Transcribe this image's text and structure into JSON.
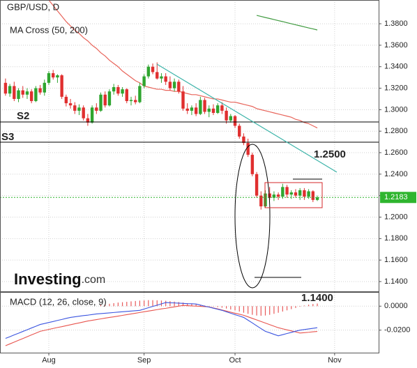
{
  "chart_data": {
    "type": "candlestick",
    "title": "GBP/USD, D",
    "indicator": "MA Cross (50, 200)",
    "categories": [
      null,
      null,
      null,
      null,
      null,
      null,
      null,
      null,
      null,
      null,
      "Aug",
      null,
      null,
      null,
      null,
      null,
      null,
      null,
      null,
      null,
      null,
      null,
      null,
      null,
      null,
      null,
      null,
      null,
      null,
      null,
      null,
      null,
      "Sep",
      null,
      null,
      null,
      null,
      null,
      null,
      null,
      null,
      null,
      null,
      null,
      null,
      null,
      null,
      null,
      null,
      null,
      null,
      null,
      null,
      "Oct",
      null,
      null,
      null,
      null,
      null,
      null,
      null,
      null,
      null,
      null,
      null,
      null,
      null,
      null,
      null,
      null,
      null,
      null,
      null,
      null,
      null,
      null,
      "Nov"
    ],
    "open": [
      1.325,
      1.315,
      1.322,
      1.31,
      1.318,
      1.314,
      1.317,
      1.308,
      1.32,
      1.316,
      1.325,
      1.334,
      1.33,
      1.332,
      1.312,
      1.306,
      1.304,
      1.299,
      1.302,
      1.292,
      1.288,
      1.302,
      1.299,
      1.314,
      1.304,
      1.317,
      1.321,
      1.315,
      1.319,
      1.308,
      1.309,
      1.307,
      1.322,
      1.331,
      1.34,
      1.335,
      1.329,
      1.331,
      1.326,
      1.32,
      1.326,
      1.317,
      1.301,
      1.299,
      1.302,
      1.296,
      1.309,
      1.298,
      1.301,
      1.297,
      1.304,
      1.299,
      1.29,
      1.294,
      1.285,
      1.275,
      1.269,
      1.258,
      1.24,
      1.22,
      1.21,
      1.222,
      1.218,
      1.221,
      1.219,
      1.228,
      1.221,
      1.223,
      1.22,
      1.225,
      1.219,
      1.224,
      1.216,
      null,
      null,
      null,
      null
    ],
    "high": [
      1.329,
      1.324,
      1.326,
      1.32,
      1.322,
      1.32,
      1.319,
      1.322,
      1.323,
      1.328,
      1.336,
      1.337,
      1.333,
      1.333,
      1.314,
      1.31,
      1.307,
      1.305,
      1.304,
      1.296,
      1.304,
      1.306,
      1.316,
      1.317,
      1.319,
      1.324,
      1.323,
      1.321,
      1.32,
      1.312,
      1.313,
      1.325,
      1.333,
      1.342,
      1.343,
      1.344,
      1.334,
      1.334,
      1.331,
      1.329,
      1.328,
      1.322,
      1.306,
      1.304,
      1.306,
      1.312,
      1.311,
      1.304,
      1.305,
      1.306,
      1.307,
      1.302,
      1.296,
      1.295,
      1.287,
      1.278,
      1.273,
      1.26,
      1.242,
      1.224,
      1.225,
      1.228,
      1.224,
      1.223,
      1.231,
      1.23,
      1.225,
      1.226,
      1.227,
      1.227,
      1.226,
      1.225,
      1.22,
      null,
      null,
      null,
      null
    ],
    "low": [
      1.313,
      1.312,
      1.308,
      1.307,
      1.311,
      1.31,
      1.306,
      1.307,
      1.314,
      1.313,
      1.323,
      1.328,
      1.325,
      1.31,
      1.303,
      1.301,
      1.296,
      1.295,
      1.29,
      1.285,
      1.287,
      1.296,
      1.298,
      1.302,
      1.303,
      1.314,
      1.313,
      1.312,
      1.306,
      1.304,
      1.305,
      1.306,
      1.32,
      1.329,
      1.333,
      1.328,
      1.325,
      1.323,
      1.318,
      1.317,
      1.315,
      1.299,
      1.296,
      1.295,
      1.294,
      1.295,
      1.296,
      1.293,
      1.295,
      1.296,
      1.296,
      1.287,
      1.288,
      1.283,
      1.273,
      1.267,
      1.256,
      1.238,
      1.218,
      1.207,
      1.209,
      1.216,
      1.215,
      1.216,
      1.217,
      1.218,
      1.217,
      1.218,
      1.216,
      1.216,
      1.217,
      1.214,
      1.215,
      null,
      null,
      null,
      null
    ],
    "close": [
      1.315,
      1.322,
      1.31,
      1.318,
      1.314,
      1.317,
      1.308,
      1.32,
      1.316,
      1.325,
      1.334,
      1.33,
      1.332,
      1.312,
      1.306,
      1.304,
      1.299,
      1.302,
      1.292,
      1.288,
      1.302,
      1.299,
      1.314,
      1.304,
      1.317,
      1.321,
      1.315,
      1.319,
      1.308,
      1.309,
      1.307,
      1.322,
      1.331,
      1.34,
      1.335,
      1.329,
      1.331,
      1.326,
      1.32,
      1.326,
      1.317,
      1.301,
      1.299,
      1.302,
      1.296,
      1.309,
      1.298,
      1.301,
      1.297,
      1.304,
      1.299,
      1.29,
      1.294,
      1.285,
      1.275,
      1.269,
      1.258,
      1.24,
      1.22,
      1.21,
      1.222,
      1.218,
      1.221,
      1.219,
      1.228,
      1.221,
      1.223,
      1.22,
      1.225,
      1.219,
      1.224,
      1.216,
      1.2183,
      null,
      null,
      null,
      null
    ],
    "up_color": "#2fa52f",
    "down_color": "#e02f2f",
    "ma_lines": [
      {
        "color": "#e8645a",
        "values": [
          null,
          null,
          null,
          null,
          null,
          null,
          null,
          null,
          null,
          null,
          1.402,
          1.397,
          1.392,
          1.387,
          1.382,
          1.378,
          1.374,
          1.371,
          1.367,
          1.364,
          1.36,
          1.357,
          1.353,
          1.35,
          1.346,
          1.343,
          1.34,
          1.336,
          1.333,
          1.33,
          1.327,
          1.325,
          1.322,
          1.321,
          1.32,
          1.319,
          1.319,
          1.318,
          1.318,
          1.317,
          1.317,
          1.316,
          1.315,
          1.314,
          1.314,
          1.313,
          1.312,
          1.311,
          1.31,
          1.31,
          1.309,
          1.308,
          1.307,
          1.307,
          1.306,
          1.305,
          1.304,
          1.303,
          1.301,
          1.3,
          1.299,
          1.298,
          1.297,
          1.296,
          1.295,
          1.294,
          1.293,
          1.291,
          1.29,
          1.288,
          1.287,
          1.285,
          1.283,
          null,
          null,
          null,
          null
        ]
      },
      {
        "color": "#3f9a3f",
        "values": [
          null,
          null,
          null,
          null,
          null,
          null,
          null,
          null,
          null,
          null,
          null,
          null,
          null,
          null,
          null,
          null,
          null,
          null,
          null,
          null,
          null,
          null,
          null,
          null,
          null,
          null,
          null,
          null,
          null,
          null,
          null,
          null,
          null,
          null,
          null,
          null,
          null,
          null,
          null,
          null,
          null,
          null,
          null,
          null,
          null,
          null,
          null,
          null,
          null,
          null,
          null,
          null,
          null,
          null,
          null,
          null,
          null,
          null,
          1.3878,
          1.3868,
          1.3858,
          1.3849,
          1.3839,
          1.3829,
          1.382,
          1.381,
          1.38,
          1.379,
          1.3781,
          1.3771,
          1.3761,
          1.3752,
          1.3742,
          null,
          null,
          null,
          null
        ]
      }
    ],
    "ylim": [
      1.1309,
      1.4021
    ],
    "yticks": [
      {
        "value": 1.38,
        "label": "1.3800"
      },
      {
        "value": 1.36,
        "label": "1.3600"
      },
      {
        "value": 1.34,
        "label": "1.3400"
      },
      {
        "value": 1.32,
        "label": "1.3200"
      },
      {
        "value": 1.3,
        "label": "1.3000"
      },
      {
        "value": 1.28,
        "label": "1.2800"
      },
      {
        "value": 1.26,
        "label": "1.2600"
      },
      {
        "value": 1.24,
        "label": "1.2400"
      },
      {
        "value": 1.22,
        "label": "1.2200"
      },
      {
        "value": 1.2,
        "label": "1.2000"
      },
      {
        "value": 1.18,
        "label": "1.1800"
      },
      {
        "value": 1.16,
        "label": "1.1600"
      },
      {
        "value": 1.14,
        "label": "1.1400"
      }
    ],
    "grid": true,
    "last_price": {
      "value": 1.2183,
      "label": "1.2183",
      "color": "#2fb52f"
    },
    "annotations": {
      "support_2": "S2",
      "support_3": "S3",
      "target_high": "1.2500",
      "target_low": "1.1400"
    },
    "logo": {
      "name": "Investing",
      "suffix": ".com"
    },
    "macd": {
      "title": "MACD (12, 26, close, 9)",
      "ylim": [
        -0.0388,
        0.0112
      ],
      "yticks": [
        {
          "value": 0,
          "label": "0.0000"
        },
        {
          "value": -0.02,
          "label": "-0.0200"
        }
      ],
      "macd_color": "#3b55e0",
      "signal_color": "#e8544e",
      "hist_color": "#e85a5a",
      "macd": [
        -0.0269,
        -0.0255,
        -0.024,
        -0.0226,
        -0.0211,
        -0.0197,
        -0.0182,
        -0.0168,
        -0.0153,
        -0.0145,
        -0.0136,
        -0.0128,
        -0.0119,
        -0.0111,
        -0.0102,
        -0.0094,
        -0.0089,
        -0.0084,
        -0.0079,
        -0.0075,
        -0.007,
        -0.0065,
        -0.0062,
        -0.0059,
        -0.0056,
        -0.0053,
        -0.005,
        -0.0047,
        -0.0044,
        -0.0041,
        -0.0038,
        -0.0035,
        -0.0024,
        -0.0013,
        -0.0002,
        0.0008,
        0.0019,
        0.003,
        0.0028,
        0.0027,
        0.0025,
        0.0023,
        0.0021,
        0.002,
        0.0018,
        0.0009,
        0,
        -0.0008,
        -0.0017,
        -0.0026,
        -0.0035,
        -0.0047,
        -0.0059,
        -0.0071,
        -0.0082,
        -0.0094,
        -0.0117,
        -0.014,
        -0.0164,
        -0.0187,
        -0.021,
        -0.0222,
        -0.0235,
        -0.0247,
        -0.0238,
        -0.0228,
        -0.0219,
        -0.0209,
        -0.02,
        -0.0195,
        -0.019,
        -0.0185,
        -0.018,
        null,
        null,
        null,
        null
      ],
      "signal": [
        -0.033,
        -0.0315,
        -0.03,
        -0.0285,
        -0.027,
        -0.0255,
        -0.024,
        -0.0225,
        -0.021,
        -0.0202,
        -0.0194,
        -0.0186,
        -0.0178,
        -0.0171,
        -0.0163,
        -0.0155,
        -0.0147,
        -0.014,
        -0.0132,
        -0.0124,
        -0.0118,
        -0.0112,
        -0.0106,
        -0.01,
        -0.0094,
        -0.0089,
        -0.0083,
        -0.0077,
        -0.0071,
        -0.0065,
        -0.0059,
        -0.0053,
        -0.0047,
        -0.0041,
        -0.0035,
        -0.0029,
        -0.0023,
        -0.0018,
        -0.0012,
        -0.0006,
        0,
        0.0006,
        0.0004,
        0.0002,
        0,
        -0.0002,
        -0.0004,
        -0.0006,
        -0.0015,
        -0.0023,
        -0.0032,
        -0.0041,
        -0.005,
        -0.0059,
        -0.0067,
        -0.0076,
        -0.0089,
        -0.0102,
        -0.0115,
        -0.0128,
        -0.0141,
        -0.0154,
        -0.0167,
        -0.018,
        -0.0189,
        -0.0198,
        -0.0206,
        -0.0215,
        -0.0224,
        -0.0221,
        -0.0218,
        -0.0214,
        -0.0211,
        null,
        null,
        null,
        null
      ],
      "histogram": [
        null,
        null,
        null,
        null,
        null,
        null,
        null,
        null,
        null,
        null,
        null,
        null,
        null,
        null,
        null,
        null,
        null,
        null,
        null,
        null,
        null,
        null,
        0.001,
        0.0015,
        0.002,
        0.0025,
        0.003,
        0.0033,
        0.0036,
        0.004,
        0.0043,
        0.0046,
        0.0048,
        0.005,
        0.005,
        0.0049,
        0.0047,
        0.0045,
        0.0042,
        0.0038,
        0.0034,
        0.003,
        0.0025,
        0.002,
        0.0015,
        0.001,
        0.0005,
        0.0002,
        -0.0003,
        -0.0008,
        -0.0013,
        -0.002,
        -0.0028,
        -0.0036,
        -0.0045,
        -0.0055,
        -0.0064,
        -0.0072,
        -0.0078,
        -0.008,
        -0.0078,
        -0.0072,
        -0.0064,
        -0.0055,
        -0.0045,
        -0.0035,
        -0.0025,
        -0.0015,
        -0.0005,
        0.0005,
        0.0012,
        0.0018,
        0.0022,
        null,
        null,
        null,
        null
      ]
    }
  }
}
